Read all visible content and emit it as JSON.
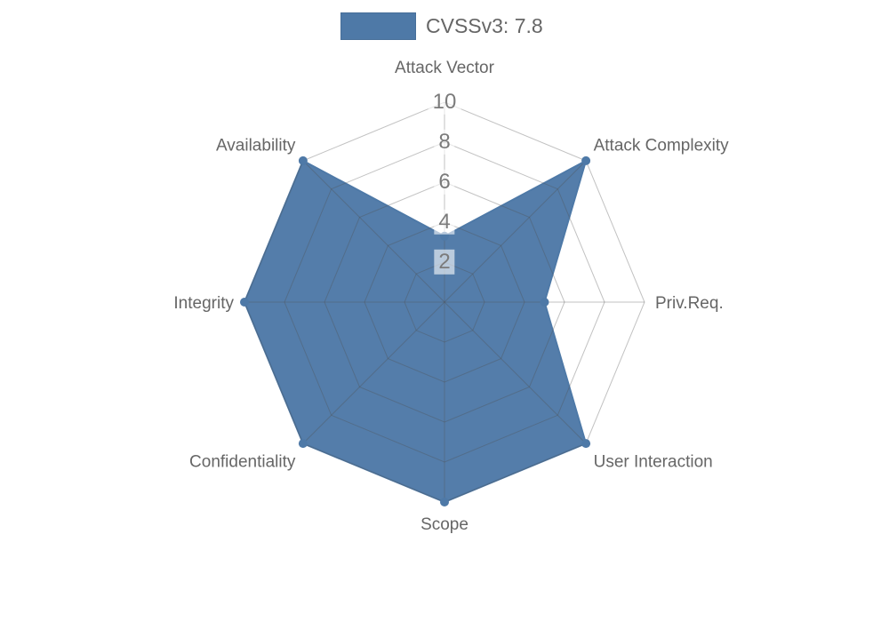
{
  "legend": {
    "swatch_color": "#4e79a7",
    "label": "CVSSv3: 7.8"
  },
  "chart_data": {
    "type": "radar",
    "title": "",
    "categories": [
      "Attack Vector",
      "Attack Complexity",
      "Priv.Req.",
      "User Interaction",
      "Scope",
      "Confidentiality",
      "Integrity",
      "Availability"
    ],
    "series": [
      {
        "name": "CVSSv3: 7.8",
        "values": [
          3.3,
          10,
          5,
          10,
          10,
          10,
          10,
          10
        ]
      }
    ],
    "ticks": [
      2,
      4,
      6,
      8,
      10
    ],
    "rlim": [
      0,
      10
    ],
    "grid": true,
    "grid_shape": "polygon",
    "legend_position": "top-center",
    "fill_color": "#4e79a7",
    "line_color": "#4e79a7",
    "marker": "circle",
    "grid_color": "rgba(80,80,80,0.35)",
    "axis_label_color": "#666666",
    "tick_label_color": "#7b7b7b"
  }
}
